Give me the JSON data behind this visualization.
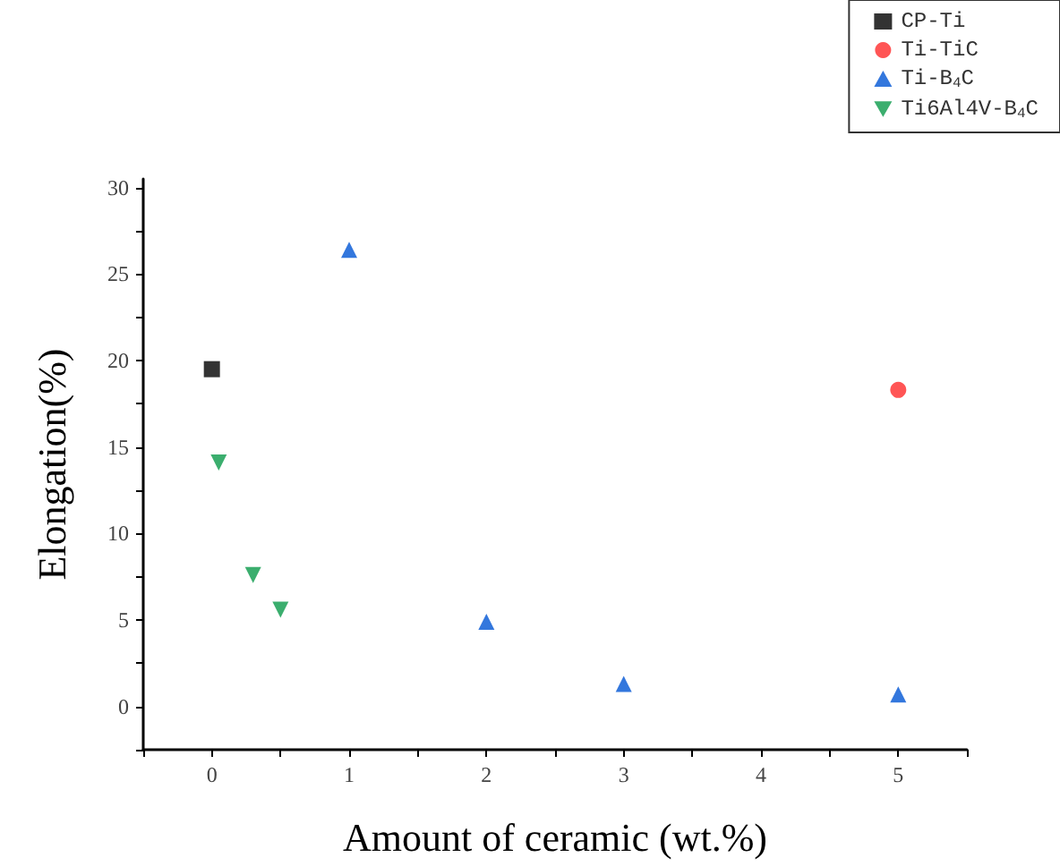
{
  "chart_data": {
    "type": "scatter",
    "xlabel": "Amount of ceramic (wt.%)",
    "ylabel": "Elongation(%)",
    "xlim": [
      -0.5,
      5.5
    ],
    "ylim": [
      -2.5,
      30.5
    ],
    "xticks": [
      {
        "value": -0.5,
        "label": null
      },
      0,
      {
        "value": 0.5,
        "label": null
      },
      1,
      {
        "value": 1.5,
        "label": null
      },
      2,
      {
        "value": 2.5,
        "label": null
      },
      3,
      {
        "value": 3.5,
        "label": null
      },
      4,
      {
        "value": 4.5,
        "label": null
      },
      5,
      {
        "value": 5.5,
        "label": null
      }
    ],
    "yticks": [
      {
        "value": -2.5,
        "label": null
      },
      0,
      {
        "value": 2.5,
        "label": null
      },
      5,
      {
        "value": 7.5,
        "label": null
      },
      10,
      {
        "value": 12.5,
        "label": null
      },
      15,
      {
        "value": 17.5,
        "label": null
      },
      20,
      {
        "value": 22.5,
        "label": null
      },
      25,
      {
        "value": 27.5,
        "label": null
      },
      30
    ],
    "grid": false,
    "legend": "top right",
    "series": [
      {
        "name": "CP-Ti",
        "color": "#000000",
        "marker": "square",
        "x": [
          0
        ],
        "values": [
          19.5
        ]
      },
      {
        "name": "Ti-TiC",
        "color": "#ff2b2b",
        "marker": "circle",
        "x": [
          5
        ],
        "values": [
          18.3
        ]
      },
      {
        "name": "Ti-B$_{4}$C",
        "color": "#0055d4",
        "marker": "triangle",
        "x": [
          1,
          2,
          3,
          5
        ],
        "values": [
          26.4,
          4.9,
          1.3,
          0.7
        ]
      },
      {
        "name": "Ti6Al4V-B$_{4}$C",
        "color": "#0a9a4a",
        "marker": "triangle-down",
        "x": [
          0.05,
          0.3,
          0.5
        ],
        "values": [
          14.1,
          7.6,
          5.6
        ]
      }
    ]
  }
}
